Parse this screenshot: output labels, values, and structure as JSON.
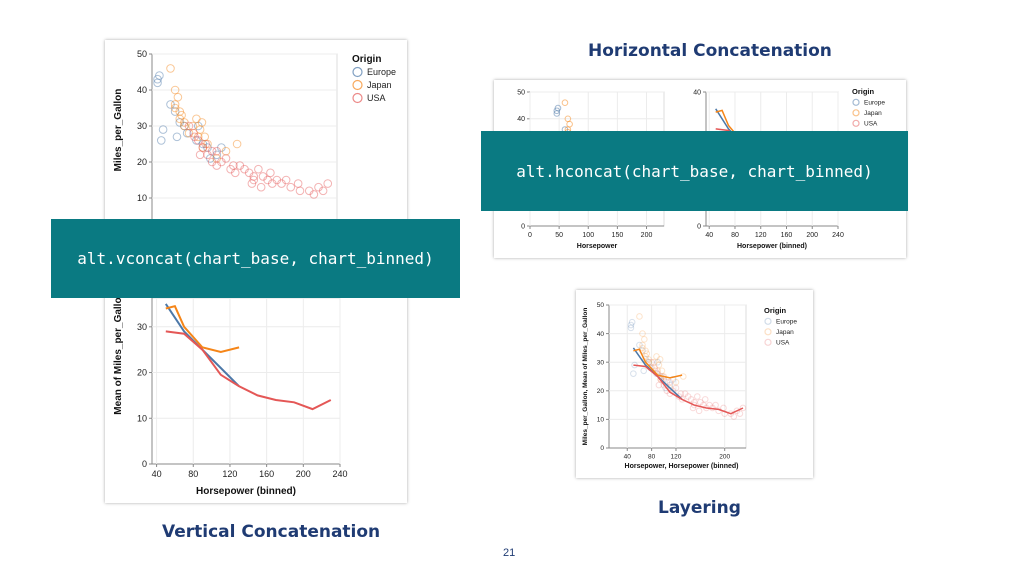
{
  "slide": {
    "page_number": "21",
    "labels": {
      "vertical": "Vertical Concatenation",
      "horizontal": "Horizontal Concatenation",
      "layering": "Layering"
    },
    "code": {
      "vconcat": "alt.vconcat(chart_base, chart_binned)",
      "hconcat": "alt.hconcat(chart_base, chart_binned)"
    },
    "colors": {
      "banner": "#0a7a82",
      "heading": "#1f3b73",
      "europe": "#4c78a8",
      "japan": "#f58518",
      "usa": "#e45756"
    }
  },
  "chart_data": [
    {
      "id": "vconcat-scatter",
      "type": "scatter",
      "xlabel": "",
      "ylabel": "Miles_per_Gallon",
      "ylim": [
        0,
        50
      ],
      "yticks": [
        "10",
        "20",
        "30",
        "40",
        "50"
      ],
      "legend": {
        "title": "Origin",
        "items": [
          "Europe",
          "Japan",
          "USA"
        ],
        "placement": "right"
      },
      "series": [
        {
          "name": "Europe",
          "points": [
            [
              46,
              43
            ],
            [
              48,
              44
            ],
            [
              46,
              42
            ],
            [
              52,
              29
            ],
            [
              60,
              36
            ],
            [
              65,
              34
            ],
            [
              70,
              31
            ],
            [
              75,
              30
            ],
            [
              88,
              26
            ],
            [
              90,
              30
            ],
            [
              95,
              25
            ],
            [
              100,
              24
            ],
            [
              110,
              22
            ],
            [
              115,
              24
            ],
            [
              50,
              26
            ],
            [
              67,
              27
            ],
            [
              78,
              28
            ],
            [
              103,
              21
            ]
          ]
        },
        {
          "name": "Japan",
          "points": [
            [
              60,
              46
            ],
            [
              65,
              40
            ],
            [
              65,
              36
            ],
            [
              68,
              38
            ],
            [
              70,
              32
            ],
            [
              75,
              30
            ],
            [
              80,
              28
            ],
            [
              88,
              32
            ],
            [
              90,
              27
            ],
            [
              95,
              24
            ],
            [
              97,
              27
            ],
            [
              100,
              25
            ],
            [
              110,
              21
            ],
            [
              120,
              23
            ],
            [
              132,
              25
            ],
            [
              65,
              35
            ],
            [
              70,
              34
            ],
            [
              72,
              33
            ],
            [
              75,
              31
            ],
            [
              84,
              30
            ],
            [
              92,
              29
            ],
            [
              94,
              31
            ]
          ]
        },
        {
          "name": "USA",
          "points": [
            [
              80,
              30
            ],
            [
              85,
              28
            ],
            [
              90,
              26
            ],
            [
              95,
              24
            ],
            [
              100,
              22
            ],
            [
              105,
              20
            ],
            [
              110,
              19
            ],
            [
              110,
              23
            ],
            [
              120,
              21
            ],
            [
              125,
              18
            ],
            [
              130,
              17
            ],
            [
              140,
              18
            ],
            [
              145,
              17
            ],
            [
              150,
              16
            ],
            [
              150,
              15
            ],
            [
              155,
              18
            ],
            [
              160,
              16
            ],
            [
              165,
              15
            ],
            [
              170,
              14
            ],
            [
              175,
              15
            ],
            [
              180,
              14
            ],
            [
              190,
              13
            ],
            [
              198,
              14
            ],
            [
              200,
              12
            ],
            [
              210,
              12
            ],
            [
              215,
              11
            ],
            [
              220,
              13
            ],
            [
              225,
              12
            ],
            [
              230,
              14
            ],
            [
              86,
              27
            ],
            [
              92,
              22
            ],
            [
              98,
              25
            ],
            [
              105,
              23
            ],
            [
              115,
              20
            ],
            [
              128,
              19
            ],
            [
              135,
              19
            ],
            [
              148,
              14
            ],
            [
              158,
              13
            ],
            [
              168,
              17
            ],
            [
              185,
              15
            ]
          ]
        }
      ]
    },
    {
      "id": "vconcat-binned",
      "type": "line",
      "xlabel": "Horsepower (binned)",
      "ylabel": "Mean of Miles_per_Gallon",
      "xticks": [
        "40",
        "80",
        "120",
        "160",
        "200",
        "240"
      ],
      "yticks": [
        "0",
        "10",
        "20",
        "30"
      ],
      "xlim": [
        40,
        240
      ],
      "series": [
        {
          "name": "Europe",
          "x": [
            50,
            70,
            90,
            110,
            130
          ],
          "y": [
            35,
            29,
            25,
            21,
            17
          ]
        },
        {
          "name": "Japan",
          "x": [
            50,
            60,
            70,
            90,
            110,
            130
          ],
          "y": [
            34,
            34.5,
            30,
            25.5,
            24.5,
            25.5
          ]
        },
        {
          "name": "USA",
          "x": [
            50,
            70,
            90,
            110,
            130,
            150,
            170,
            190,
            210,
            230
          ],
          "y": [
            29,
            28.5,
            25,
            19.5,
            17,
            15,
            14,
            13.5,
            12,
            14
          ]
        }
      ]
    },
    {
      "id": "hconcat-scatter",
      "type": "scatter",
      "xlabel": "Horsepower",
      "ylabel": "",
      "xticks": [
        "0",
        "50",
        "100",
        "150",
        "200"
      ],
      "yticks": [
        "0",
        "40",
        "50"
      ],
      "xlim": [
        0,
        230
      ],
      "ylim": [
        0,
        50
      ]
    },
    {
      "id": "hconcat-binned",
      "type": "line",
      "xlabel": "Horsepower (binned)",
      "ylabel": "",
      "xticks": [
        "40",
        "80",
        "120",
        "160",
        "200",
        "240"
      ],
      "yticks": [
        "0",
        "40"
      ],
      "legend": {
        "title": "Origin",
        "items": [
          "Europe",
          "Japan",
          "USA"
        ],
        "placement": "right"
      }
    },
    {
      "id": "layered",
      "type": "scatter",
      "xlabel": "Horsepower, Horsepower (binned)",
      "ylabel": "Miles_per_Gallon, Mean of Miles_per_Gallon",
      "xticks": [
        "40",
        "80",
        "120",
        "200"
      ],
      "yticks": [
        "0",
        "10",
        "20",
        "30",
        "40",
        "50"
      ],
      "legend": {
        "title": "Origin",
        "items": [
          "Europe",
          "Japan",
          "USA"
        ],
        "placement": "right"
      }
    }
  ]
}
